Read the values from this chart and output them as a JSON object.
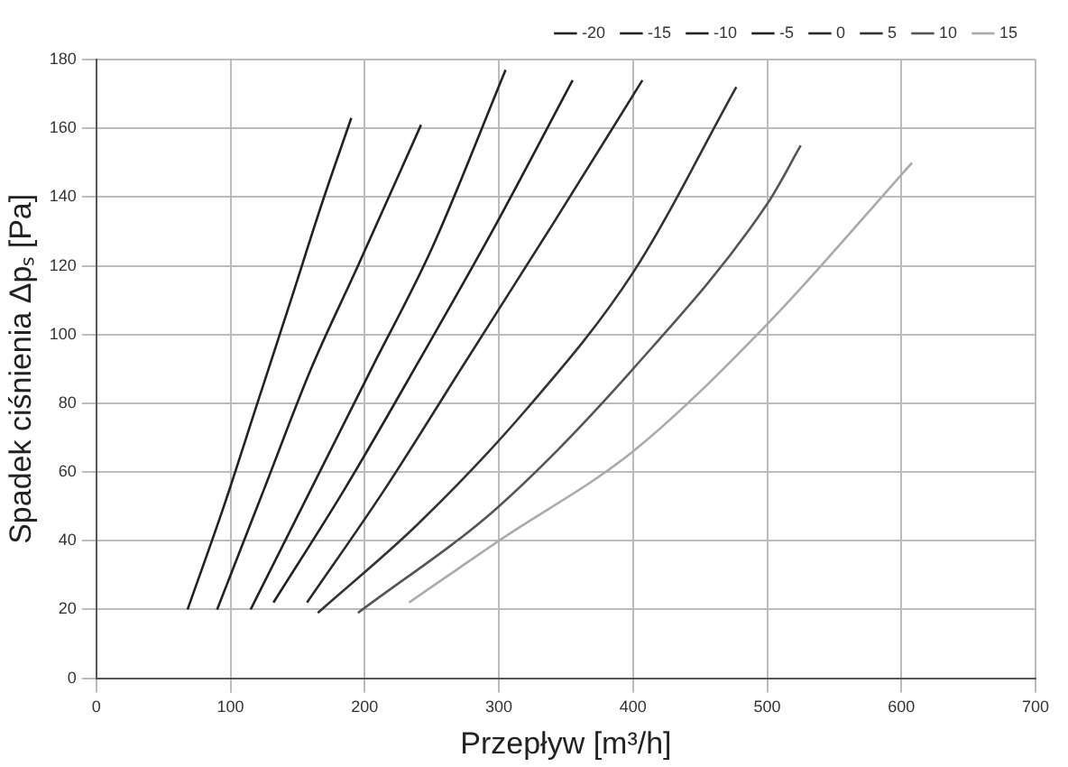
{
  "chart_data": {
    "type": "line",
    "xlabel": "Przepływ [m³/h]",
    "ylabel": "Spadek ciśnienia Δpₛ [Pa]",
    "xlim": [
      0,
      700
    ],
    "xticks": [
      0,
      100,
      200,
      300,
      400,
      500,
      600,
      700
    ],
    "ylim": [
      0,
      180
    ],
    "yticks": [
      0,
      20,
      40,
      60,
      80,
      100,
      120,
      140,
      160,
      180
    ],
    "grid": true,
    "legend": "top",
    "marker": "none",
    "line_style": "solid",
    "series": [
      {
        "name": "-20",
        "color": "#222222",
        "x": [
          68,
          95,
          120,
          145,
          168,
          190
        ],
        "values": [
          20,
          50,
          80,
          110,
          138,
          163
        ]
      },
      {
        "name": "-15",
        "color": "#222222",
        "x": [
          90,
          125,
          160,
          195,
          242
        ],
        "values": [
          20,
          55,
          90,
          120,
          161
        ]
      },
      {
        "name": "-10",
        "color": "#222222",
        "x": [
          115,
          160,
          205,
          250,
          305
        ],
        "values": [
          20,
          55,
          90,
          125,
          177
        ]
      },
      {
        "name": "-5",
        "color": "#222222",
        "x": [
          132,
          185,
          240,
          295,
          355
        ],
        "values": [
          22,
          55,
          92,
          130,
          174
        ]
      },
      {
        "name": "0",
        "color": "#2a2a2a",
        "x": [
          157,
          215,
          275,
          340,
          407
        ],
        "values": [
          22,
          55,
          92,
          132,
          174
        ]
      },
      {
        "name": "5",
        "color": "#333333",
        "x": [
          165,
          240,
          320,
          400,
          477
        ],
        "values": [
          19,
          45,
          78,
          118,
          172
        ]
      },
      {
        "name": "10",
        "color": "#555555",
        "x": [
          195,
          300,
          400,
          500,
          525
        ],
        "values": [
          19,
          50,
          90,
          138,
          155
        ]
      },
      {
        "name": "15",
        "color": "#aaaaaa",
        "x": [
          233,
          300,
          400,
          500,
          608
        ],
        "values": [
          22,
          40,
          66,
          103,
          150
        ]
      }
    ]
  }
}
